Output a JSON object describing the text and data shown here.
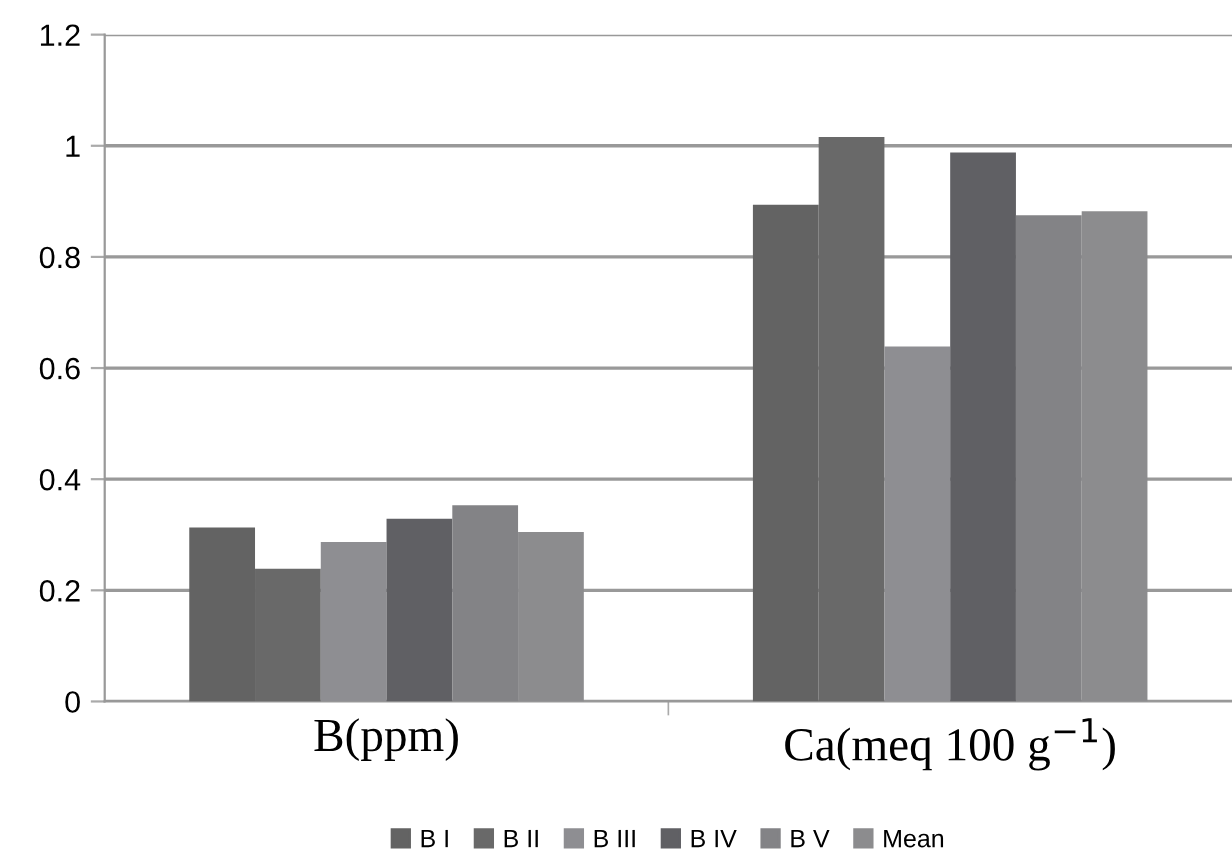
{
  "chart_data": {
    "type": "bar",
    "categories": [
      "B(ppm)",
      "Ca(meq 100 g$^{−1}$)"
    ],
    "series": [
      {
        "name": "B I",
        "color": "#636363",
        "values": [
          0.313,
          0.894
        ]
      },
      {
        "name": "B II",
        "color": "#696969",
        "values": [
          0.239,
          1.016
        ]
      },
      {
        "name": "B III",
        "color": "#8e8e92",
        "values": [
          0.287,
          0.639
        ]
      },
      {
        "name": "B IV",
        "color": "#606064",
        "values": [
          0.329,
          0.988
        ]
      },
      {
        "name": "B V",
        "color": "#838386",
        "values": [
          0.353,
          0.875
        ]
      },
      {
        "name": "Mean",
        "color": "#8c8c8e",
        "values": [
          0.305,
          0.882
        ]
      }
    ],
    "ylim": [
      0,
      1.2
    ],
    "yticks": [
      0,
      0.2,
      0.4,
      0.6,
      0.8,
      1,
      1.2
    ],
    "grid": "y",
    "legend": "bottom"
  }
}
